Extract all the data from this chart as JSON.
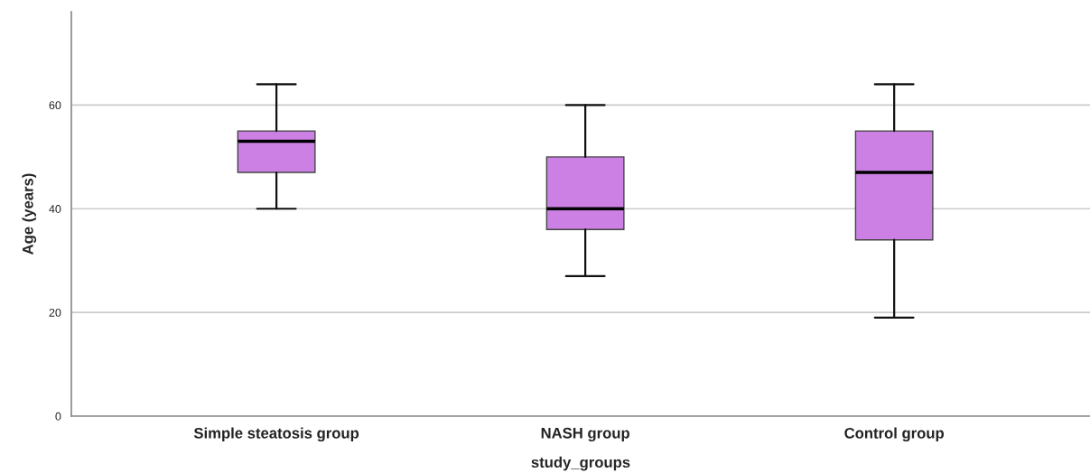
{
  "chart_data": {
    "type": "box",
    "xlabel": "study_groups",
    "ylabel": "Age (years)",
    "categories": [
      "Simple steatosis group",
      "NASH group",
      "Control group"
    ],
    "boxes": [
      {
        "low": 40,
        "q1": 47,
        "median": 53,
        "q3": 55,
        "high": 64
      },
      {
        "low": 27,
        "q1": 36,
        "median": 40,
        "q3": 50,
        "high": 60
      },
      {
        "low": 19,
        "q1": 34,
        "median": 47,
        "q3": 55,
        "high": 64
      }
    ],
    "colors": [
      "#cc80e4",
      "#cc80e4",
      "#cc80e4"
    ],
    "ylim": [
      0,
      78
    ],
    "yticks": [
      0,
      20,
      40,
      60
    ],
    "grid": "y"
  }
}
